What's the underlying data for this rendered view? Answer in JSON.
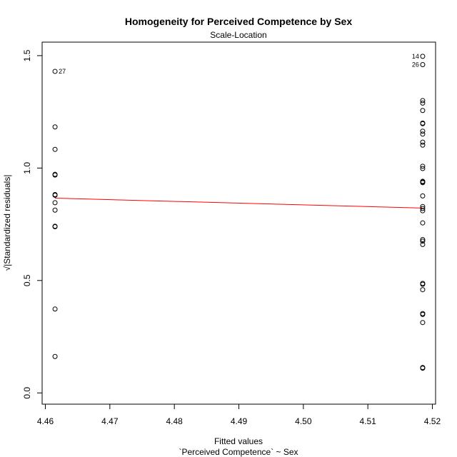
{
  "chart_data": {
    "type": "scatter",
    "title": "Homogeneity for Perceived Competence by Sex",
    "subtitle": "Scale-Location",
    "xlabel": "Fitted values",
    "xlabel2": "`Perceived Competence` ~ Sex",
    "ylabel": "√|Standardized residuals|",
    "xlim": [
      4.4595,
      4.5205
    ],
    "ylim": [
      -0.05,
      1.56
    ],
    "xticks": [
      "4.46",
      "4.47",
      "4.48",
      "4.49",
      "4.50",
      "4.51",
      "4.52"
    ],
    "yticks": [
      "0.0",
      "0.5",
      "1.0",
      "1.5"
    ],
    "grid": false,
    "legend": "none",
    "points": [
      {
        "x": 4.4615,
        "y": 1.43,
        "label": "27"
      },
      {
        "x": 4.4615,
        "y": 1.183
      },
      {
        "x": 4.4615,
        "y": 1.083
      },
      {
        "x": 4.4615,
        "y": 0.972
      },
      {
        "x": 4.4615,
        "y": 0.969
      },
      {
        "x": 4.4615,
        "y": 0.882
      },
      {
        "x": 4.4615,
        "y": 0.879
      },
      {
        "x": 4.4615,
        "y": 0.846
      },
      {
        "x": 4.4615,
        "y": 0.813
      },
      {
        "x": 4.4615,
        "y": 0.741
      },
      {
        "x": 4.4615,
        "y": 0.739
      },
      {
        "x": 4.4615,
        "y": 0.373
      },
      {
        "x": 4.4615,
        "y": 0.162
      },
      {
        "x": 4.5185,
        "y": 1.497,
        "label": "14"
      },
      {
        "x": 4.5185,
        "y": 1.46,
        "label": "26"
      },
      {
        "x": 4.5185,
        "y": 1.3
      },
      {
        "x": 4.5185,
        "y": 1.289
      },
      {
        "x": 4.5185,
        "y": 1.256
      },
      {
        "x": 4.5185,
        "y": 1.2
      },
      {
        "x": 4.5185,
        "y": 1.197
      },
      {
        "x": 4.5185,
        "y": 1.164
      },
      {
        "x": 4.5185,
        "y": 1.151
      },
      {
        "x": 4.5185,
        "y": 1.115
      },
      {
        "x": 4.5185,
        "y": 1.102
      },
      {
        "x": 4.5185,
        "y": 1.008
      },
      {
        "x": 4.5185,
        "y": 0.998
      },
      {
        "x": 4.5185,
        "y": 0.941
      },
      {
        "x": 4.5185,
        "y": 0.938
      },
      {
        "x": 4.5185,
        "y": 0.935
      },
      {
        "x": 4.5185,
        "y": 0.876
      },
      {
        "x": 4.5185,
        "y": 0.829
      },
      {
        "x": 4.5185,
        "y": 0.82
      },
      {
        "x": 4.5185,
        "y": 0.81
      },
      {
        "x": 4.5185,
        "y": 0.756
      },
      {
        "x": 4.5185,
        "y": 0.682
      },
      {
        "x": 4.5185,
        "y": 0.675
      },
      {
        "x": 4.5185,
        "y": 0.66
      },
      {
        "x": 4.5185,
        "y": 0.487
      },
      {
        "x": 4.5185,
        "y": 0.483
      },
      {
        "x": 4.5185,
        "y": 0.459
      },
      {
        "x": 4.5185,
        "y": 0.353
      },
      {
        "x": 4.5185,
        "y": 0.349
      },
      {
        "x": 4.5185,
        "y": 0.313
      },
      {
        "x": 4.5185,
        "y": 0.113
      },
      {
        "x": 4.5185,
        "y": 0.11
      }
    ],
    "smooth_line": {
      "x": [
        4.4615,
        4.5185
      ],
      "y": [
        0.866,
        0.822
      ]
    },
    "colors": {
      "points": "#000000",
      "smooth": "#ff0000"
    }
  }
}
